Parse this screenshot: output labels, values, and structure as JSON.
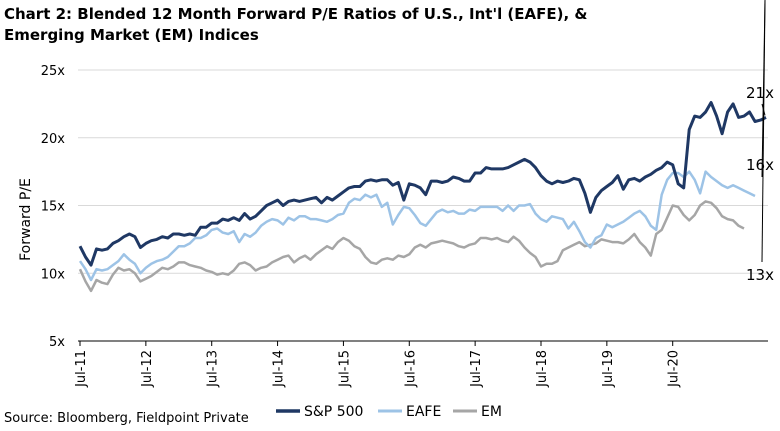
{
  "title": "Chart 2: Blended 12 Month Forward P/E Ratios of U.S., Int'l (EAFE), & Emerging Market (EM) Indices",
  "source": "Source: Bloomberg, Fieldpoint Private",
  "chart_data": {
    "type": "line",
    "title": "Chart 2: Blended 12 Month Forward P/E Ratios of U.S., Int'l (EAFE), & Emerging Market (EM) Indices",
    "ylabel": "Forward P/E",
    "xlabel": "",
    "ylim": [
      5,
      25
    ],
    "yticks": [
      "5x",
      "10x",
      "15x",
      "20x",
      "25x"
    ],
    "ytick_values": [
      5,
      10,
      15,
      20,
      25
    ],
    "xticks": [
      "Jul-11",
      "Jul-12",
      "Jul-13",
      "Jul-14",
      "Jul-15",
      "Jul-16",
      "Jul-17",
      "Jul-18",
      "Jul-19",
      "Jul-20"
    ],
    "xtick_months": [
      0,
      12,
      24,
      36,
      48,
      60,
      72,
      84,
      96,
      108
    ],
    "x_start": "Jul-11",
    "x_end": "Mar-21",
    "grid": "horizontal",
    "legend_position": "bottom",
    "series": [
      {
        "name": "S&P 500",
        "color": "#1f3864",
        "end_label": "21x",
        "values": [
          12.0,
          11.2,
          10.6,
          11.8,
          11.7,
          11.8,
          12.2,
          12.4,
          12.7,
          12.9,
          12.7,
          11.9,
          12.2,
          12.4,
          12.5,
          12.7,
          12.6,
          12.9,
          12.9,
          12.8,
          12.9,
          12.8,
          13.4,
          13.4,
          13.7,
          13.7,
          14.0,
          13.9,
          14.1,
          13.9,
          14.4,
          14.0,
          14.2,
          14.6,
          15.0,
          15.2,
          15.4,
          15.0,
          15.3,
          15.4,
          15.3,
          15.4,
          15.5,
          15.6,
          15.2,
          15.6,
          15.4,
          15.7,
          16.0,
          16.3,
          16.4,
          16.4,
          16.8,
          16.9,
          16.8,
          16.9,
          16.9,
          16.5,
          16.7,
          15.4,
          16.6,
          16.5,
          16.3,
          15.8,
          16.8,
          16.8,
          16.7,
          16.8,
          17.1,
          17.0,
          16.8,
          16.8,
          17.4,
          17.4,
          17.8,
          17.7,
          17.7,
          17.7,
          17.8,
          18.0,
          18.2,
          18.4,
          18.2,
          17.8,
          17.2,
          16.8,
          16.6,
          16.8,
          16.7,
          16.8,
          17.0,
          16.9,
          15.9,
          14.5,
          15.6,
          16.1,
          16.4,
          16.7,
          17.2,
          16.2,
          16.9,
          17.0,
          16.8,
          17.1,
          17.3,
          17.6,
          17.8,
          18.2,
          18.0,
          16.6,
          16.3,
          20.6,
          21.6,
          21.5,
          21.9,
          22.6,
          21.6,
          20.3,
          21.9,
          22.5,
          21.5,
          21.6,
          21.9,
          21.2,
          21.3,
          21.5
        ]
      },
      {
        "name": "EAFE",
        "color": "#9dc3e6",
        "end_label": "16x",
        "values": [
          10.9,
          10.3,
          9.5,
          10.3,
          10.2,
          10.3,
          10.6,
          10.9,
          11.4,
          11.0,
          10.7,
          10.0,
          10.4,
          10.7,
          10.9,
          11.0,
          11.2,
          11.6,
          12.0,
          12.0,
          12.2,
          12.6,
          12.6,
          12.8,
          13.2,
          13.3,
          13.0,
          12.9,
          13.1,
          12.3,
          12.9,
          12.7,
          13.0,
          13.5,
          13.8,
          14.0,
          13.9,
          13.6,
          14.1,
          13.9,
          14.2,
          14.2,
          14.0,
          14.0,
          13.9,
          13.8,
          14.0,
          14.3,
          14.4,
          15.2,
          15.5,
          15.4,
          15.8,
          15.6,
          15.8,
          14.9,
          15.2,
          13.6,
          14.3,
          14.9,
          14.8,
          14.3,
          13.7,
          13.5,
          14.0,
          14.5,
          14.7,
          14.5,
          14.6,
          14.4,
          14.4,
          14.7,
          14.6,
          14.9,
          14.9,
          14.9,
          14.9,
          14.6,
          15.0,
          14.6,
          15.0,
          15.0,
          15.1,
          14.4,
          14.0,
          13.8,
          14.2,
          14.1,
          14.0,
          13.3,
          13.8,
          13.1,
          12.3,
          11.9,
          12.6,
          12.8,
          13.6,
          13.4,
          13.6,
          13.8,
          14.1,
          14.4,
          14.6,
          14.2,
          13.5,
          13.2,
          15.8,
          16.9,
          17.4,
          17.4,
          17.1,
          17.5,
          16.9,
          15.9,
          17.5,
          17.1,
          16.8,
          16.5,
          16.3,
          16.5,
          16.3,
          16.1,
          15.9,
          15.7
        ]
      },
      {
        "name": "EM",
        "color": "#a6a6a6",
        "end_label": "13x",
        "values": [
          10.3,
          9.4,
          8.7,
          9.5,
          9.3,
          9.2,
          9.9,
          10.4,
          10.2,
          10.3,
          10.0,
          9.4,
          9.6,
          9.8,
          10.1,
          10.4,
          10.3,
          10.5,
          10.8,
          10.8,
          10.6,
          10.5,
          10.4,
          10.2,
          10.1,
          9.9,
          10.0,
          9.9,
          10.2,
          10.7,
          10.8,
          10.6,
          10.2,
          10.4,
          10.5,
          10.8,
          11.0,
          11.2,
          11.3,
          10.8,
          11.1,
          11.3,
          11.0,
          11.4,
          11.7,
          12.0,
          11.8,
          12.3,
          12.6,
          12.4,
          12.0,
          11.8,
          11.2,
          10.8,
          10.7,
          11.0,
          11.1,
          11.0,
          11.3,
          11.2,
          11.4,
          11.9,
          12.1,
          11.9,
          12.2,
          12.3,
          12.4,
          12.3,
          12.2,
          12.0,
          11.9,
          12.1,
          12.2,
          12.6,
          12.6,
          12.5,
          12.6,
          12.4,
          12.3,
          12.7,
          12.4,
          11.9,
          11.5,
          11.2,
          10.5,
          10.7,
          10.7,
          10.9,
          11.7,
          11.9,
          12.1,
          12.3,
          12.0,
          12.1,
          12.2,
          12.5,
          12.4,
          12.3,
          12.3,
          12.2,
          12.5,
          12.9,
          12.3,
          11.9,
          11.3,
          12.9,
          13.2,
          14.1,
          15.0,
          14.9,
          14.3,
          13.9,
          14.3,
          15.0,
          15.3,
          15.2,
          14.8,
          14.2,
          14.0,
          13.9,
          13.5,
          13.3
        ]
      }
    ]
  }
}
